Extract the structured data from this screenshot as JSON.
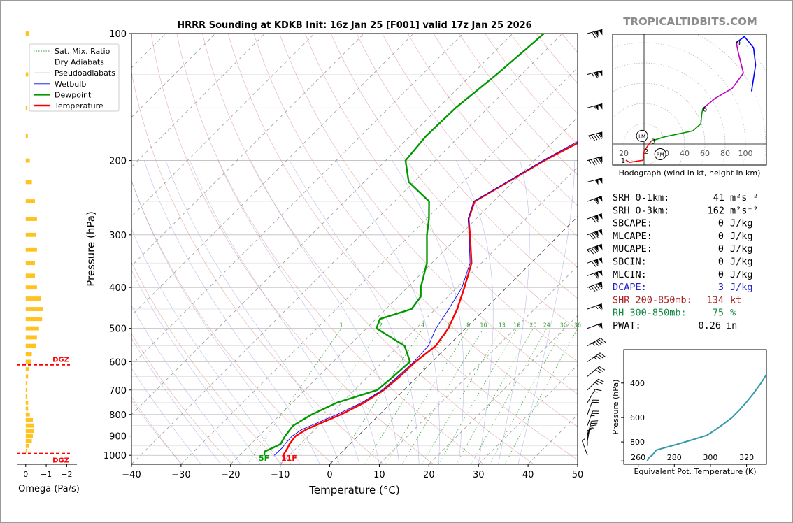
{
  "chart_data": [
    {
      "type": "line",
      "subtype": "skew-t",
      "title": "HRRR Sounding at KDKB Init: 16z Jan 25 [F001] valid 17z Jan 25 2026",
      "xlabel": "Temperature (°C)",
      "ylabel": "Pressure (hPa)",
      "xlim": [
        -40,
        50
      ],
      "ylim": [
        1050,
        100
      ],
      "y_scale": "log",
      "x_ticks": [
        -40,
        -30,
        -20,
        -10,
        0,
        10,
        20,
        30,
        40,
        50
      ],
      "x_tick_labels": [
        "−40",
        "−30",
        "−20",
        "−10",
        "0",
        "10",
        "20",
        "30",
        "40",
        "50"
      ],
      "y_ticks": [
        100,
        200,
        300,
        400,
        500,
        600,
        700,
        800,
        900,
        1000
      ],
      "grid": true,
      "legend_position": "top-left",
      "legend": [
        {
          "name": "Sat. Mix. Ratio",
          "color": "#2ca02c",
          "style": "dotted"
        },
        {
          "name": "Dry Adiabats",
          "color": "#d08a8a",
          "style": "solid"
        },
        {
          "name": "Pseudoadiabats",
          "color": "#aaaaaa",
          "style": "solid"
        },
        {
          "name": "Wetbulb",
          "color": "#0000ff",
          "style": "solid"
        },
        {
          "name": "Dewpoint",
          "color": "#009900",
          "style": "solid"
        },
        {
          "name": "Temperature",
          "color": "#ff0000",
          "style": "solid"
        }
      ],
      "mixing_ratio_labels": [
        "1",
        "2",
        "4",
        "6",
        "8",
        "10",
        "13",
        "16",
        "20",
        "24",
        "30",
        "36"
      ],
      "series": [
        {
          "name": "Temperature",
          "color": "#ff0000",
          "points": [
            [
              1000,
              -11.2
            ],
            [
              980,
              -11.5
            ],
            [
              960,
              -11.8
            ],
            [
              940,
              -12.2
            ],
            [
              900,
              -12.6
            ],
            [
              870,
              -11.8
            ],
            [
              850,
              -10.8
            ],
            [
              800,
              -7.8
            ],
            [
              750,
              -5.5
            ],
            [
              700,
              -4.1
            ],
            [
              650,
              -3.6
            ],
            [
              600,
              -3.4
            ],
            [
              550,
              -2.5
            ],
            [
              500,
              -3.5
            ],
            [
              450,
              -5.6
            ],
            [
              400,
              -8.5
            ],
            [
              350,
              -12.0
            ],
            [
              300,
              -18.0
            ],
            [
              275,
              -21.5
            ],
            [
              250,
              -23.8
            ],
            [
              225,
              -21.0
            ],
            [
              200,
              -18.0
            ],
            [
              175,
              -13.5
            ],
            [
              150,
              -9.0
            ],
            [
              125,
              -5.5
            ],
            [
              100,
              -4.2
            ]
          ]
        },
        {
          "name": "Dewpoint",
          "color": "#009900",
          "points": [
            [
              1000,
              -15.0
            ],
            [
              980,
              -15.7
            ],
            [
              960,
              -14.8
            ],
            [
              940,
              -14.0
            ],
            [
              900,
              -14.7
            ],
            [
              870,
              -15.0
            ],
            [
              850,
              -15.2
            ],
            [
              800,
              -13.7
            ],
            [
              750,
              -11.0
            ],
            [
              700,
              -5.4
            ],
            [
              650,
              -4.9
            ],
            [
              600,
              -4.5
            ],
            [
              550,
              -8.8
            ],
            [
              500,
              -18.0
            ],
            [
              475,
              -19.2
            ],
            [
              450,
              -14.8
            ],
            [
              420,
              -15.5
            ],
            [
              400,
              -17.3
            ],
            [
              350,
              -21.0
            ],
            [
              300,
              -26.7
            ],
            [
              275,
              -29.5
            ],
            [
              250,
              -33.0
            ],
            [
              225,
              -41.0
            ],
            [
              200,
              -46.0
            ],
            [
              175,
              -46.8
            ],
            [
              150,
              -46.5
            ],
            [
              125,
              -45.0
            ],
            [
              100,
              -43.7
            ]
          ]
        },
        {
          "name": "Wetbulb",
          "color": "#0000ff",
          "points": [
            [
              1000,
              -13.0
            ],
            [
              960,
              -12.9
            ],
            [
              940,
              -13.1
            ],
            [
              900,
              -13.3
            ],
            [
              870,
              -12.7
            ],
            [
              850,
              -11.6
            ],
            [
              800,
              -8.6
            ],
            [
              750,
              -6.0
            ],
            [
              700,
              -4.4
            ],
            [
              650,
              -4.0
            ],
            [
              600,
              -3.7
            ],
            [
              550,
              -4.0
            ],
            [
              500,
              -6.0
            ],
            [
              450,
              -7.3
            ],
            [
              400,
              -9.0
            ],
            [
              350,
              -12.3
            ],
            [
              300,
              -18.2
            ],
            [
              275,
              -21.6
            ],
            [
              250,
              -24.0
            ],
            [
              225,
              -21.2
            ],
            [
              200,
              -18.3
            ],
            [
              175,
              -14.2
            ],
            [
              150,
              -9.5
            ],
            [
              125,
              -6.2
            ],
            [
              100,
              -4.9
            ]
          ]
        }
      ],
      "surface_labels": [
        {
          "text": "5F",
          "color": "#009900"
        },
        {
          "text": "11F",
          "color": "#ff0000"
        }
      ],
      "wind_barbs": [
        {
          "p": 100,
          "dir": 255,
          "kt": 120
        },
        {
          "p": 125,
          "dir": 255,
          "kt": 115
        },
        {
          "p": 150,
          "dir": 255,
          "kt": 105
        },
        {
          "p": 175,
          "dir": 255,
          "kt": 95
        },
        {
          "p": 200,
          "dir": 255,
          "kt": 95
        },
        {
          "p": 225,
          "dir": 255,
          "kt": 100
        },
        {
          "p": 250,
          "dir": 250,
          "kt": 110
        },
        {
          "p": 275,
          "dir": 250,
          "kt": 120
        },
        {
          "p": 300,
          "dir": 250,
          "kt": 130
        },
        {
          "p": 325,
          "dir": 250,
          "kt": 135
        },
        {
          "p": 350,
          "dir": 250,
          "kt": 120
        },
        {
          "p": 375,
          "dir": 250,
          "kt": 110
        },
        {
          "p": 400,
          "dir": 250,
          "kt": 95
        },
        {
          "p": 450,
          "dir": 250,
          "kt": 65
        },
        {
          "p": 500,
          "dir": 250,
          "kt": 55
        },
        {
          "p": 550,
          "dir": 240,
          "kt": 45
        },
        {
          "p": 600,
          "dir": 235,
          "kt": 35
        },
        {
          "p": 650,
          "dir": 230,
          "kt": 30
        },
        {
          "p": 700,
          "dir": 225,
          "kt": 25
        },
        {
          "p": 750,
          "dir": 210,
          "kt": 15
        },
        {
          "p": 800,
          "dir": 200,
          "kt": 20
        },
        {
          "p": 850,
          "dir": 200,
          "kt": 25
        },
        {
          "p": 900,
          "dir": 195,
          "kt": 20
        },
        {
          "p": 925,
          "dir": 190,
          "kt": 15
        },
        {
          "p": 950,
          "dir": 180,
          "kt": 10
        },
        {
          "p": 1000,
          "dir": 160,
          "kt": 5
        }
      ]
    },
    {
      "type": "bar",
      "subtype": "omega-profile",
      "xlabel": "Omega (Pa/s)",
      "x_ticks": [
        "0",
        "−1",
        "−2"
      ],
      "xlim": [
        0.3,
        -2.5
      ],
      "y_scale": "log",
      "ylim": [
        1050,
        100
      ],
      "dgz_label": "DGZ",
      "dgz_levels": [
        610,
        990
      ],
      "bars": [
        {
          "p": 100,
          "v": -0.15
        },
        {
          "p": 125,
          "v": -0.12
        },
        {
          "p": 150,
          "v": -0.08
        },
        {
          "p": 175,
          "v": -0.1
        },
        {
          "p": 200,
          "v": -0.2
        },
        {
          "p": 225,
          "v": -0.3
        },
        {
          "p": 250,
          "v": -0.45
        },
        {
          "p": 275,
          "v": -0.55
        },
        {
          "p": 300,
          "v": -0.5
        },
        {
          "p": 325,
          "v": -0.55
        },
        {
          "p": 350,
          "v": -0.45
        },
        {
          "p": 375,
          "v": -0.45
        },
        {
          "p": 400,
          "v": -0.55
        },
        {
          "p": 425,
          "v": -0.75
        },
        {
          "p": 450,
          "v": -0.85
        },
        {
          "p": 475,
          "v": -0.8
        },
        {
          "p": 500,
          "v": -0.65
        },
        {
          "p": 525,
          "v": -0.55
        },
        {
          "p": 550,
          "v": -0.5
        },
        {
          "p": 575,
          "v": -0.3
        },
        {
          "p": 600,
          "v": -0.25
        },
        {
          "p": 625,
          "v": -0.15
        },
        {
          "p": 650,
          "v": -0.12
        },
        {
          "p": 675,
          "v": -0.08
        },
        {
          "p": 700,
          "v": -0.08
        },
        {
          "p": 725,
          "v": -0.08
        },
        {
          "p": 750,
          "v": -0.12
        },
        {
          "p": 775,
          "v": -0.12
        },
        {
          "p": 800,
          "v": -0.2
        },
        {
          "p": 825,
          "v": -0.35
        },
        {
          "p": 850,
          "v": -0.4
        },
        {
          "p": 875,
          "v": -0.4
        },
        {
          "p": 900,
          "v": -0.35
        },
        {
          "p": 925,
          "v": -0.3
        },
        {
          "p": 950,
          "v": -0.15
        },
        {
          "p": 975,
          "v": -0.08
        }
      ]
    },
    {
      "type": "line",
      "subtype": "hodograph",
      "xlabel": "Hodograph (wind in kt, height in km)",
      "x_ticks": [
        "20",
        "40",
        "60",
        "80",
        "100"
      ],
      "ring_spacing_kt": 20,
      "points": [
        {
          "u": -18,
          "v": -16,
          "km": 1
        },
        {
          "u": -14,
          "v": -18,
          "km": null
        },
        {
          "u": -1,
          "v": -16,
          "km": null
        },
        {
          "u": 0,
          "v": -7,
          "km": 2
        },
        {
          "u": 7,
          "v": 3,
          "km": 3
        },
        {
          "u": 20,
          "v": 7,
          "km": null
        },
        {
          "u": 48,
          "v": 13,
          "km": null
        },
        {
          "u": 56,
          "v": 20,
          "km": null
        },
        {
          "u": 57,
          "v": 30,
          "km": null
        },
        {
          "u": 58,
          "v": 35,
          "km": 6
        },
        {
          "u": 70,
          "v": 45,
          "km": null
        },
        {
          "u": 87,
          "v": 55,
          "km": null
        },
        {
          "u": 98,
          "v": 70,
          "km": null
        },
        {
          "u": 93,
          "v": 90,
          "km": null
        },
        {
          "u": 91,
          "v": 100,
          "km": 9
        },
        {
          "u": 99,
          "v": 106,
          "km": null
        },
        {
          "u": 108,
          "v": 95,
          "km": null
        },
        {
          "u": 110,
          "v": 78,
          "km": null
        },
        {
          "u": 106,
          "v": 52,
          "km": null
        }
      ],
      "segments": [
        {
          "from_km": 0,
          "to_km": 3,
          "color": "#ff0000"
        },
        {
          "from_km": 3,
          "to_km": 6,
          "color": "#009900"
        },
        {
          "from_km": 6,
          "to_km": 9,
          "color": "#c000c0"
        },
        {
          "from_km": 9,
          "to_km": 12,
          "color": "#0000ff"
        }
      ],
      "storm_motion": [
        {
          "label": "LM",
          "u": -2,
          "v": 8
        },
        {
          "label": "RM",
          "u": 16,
          "v": -10
        }
      ]
    },
    {
      "type": "line",
      "subtype": "theta-e-profile",
      "xlabel": "Equivalent Pot. Temperature (K)",
      "ylabel": "Pressure (hPa)",
      "xlim": [
        252,
        331
      ],
      "ylim": [
        1040,
        270
      ],
      "y_scale": "log",
      "x_ticks": [
        260,
        280,
        300,
        320
      ],
      "y_ticks": [
        400,
        600,
        800
      ],
      "color": "#3399aa",
      "points": [
        [
          1000,
          265
        ],
        [
          960,
          266
        ],
        [
          930,
          268
        ],
        [
          880,
          270
        ],
        [
          820,
          282
        ],
        [
          780,
          290
        ],
        [
          740,
          298
        ],
        [
          700,
          302
        ],
        [
          650,
          307
        ],
        [
          600,
          312
        ],
        [
          550,
          316
        ],
        [
          500,
          320
        ],
        [
          450,
          324
        ],
        [
          400,
          328
        ],
        [
          350,
          332
        ],
        [
          300,
          336
        ]
      ]
    }
  ],
  "brand": "TROPICALTIDBITS.COM",
  "indices": [
    {
      "label": "SRH 0-1km:",
      "value": "41",
      "unit": "m²s⁻²",
      "color": "#000000"
    },
    {
      "label": "SRH 0-3km:",
      "value": "162",
      "unit": "m²s⁻²",
      "color": "#000000"
    },
    {
      "label": "SBCAPE:",
      "value": "0",
      "unit": "J/kg",
      "color": "#000000"
    },
    {
      "label": "MLCAPE:",
      "value": "0",
      "unit": "J/kg",
      "color": "#000000"
    },
    {
      "label": "MUCAPE:",
      "value": "0",
      "unit": "J/kg",
      "color": "#000000"
    },
    {
      "label": "SBCIN:",
      "value": "0",
      "unit": "J/kg",
      "color": "#000000"
    },
    {
      "label": "MLCIN:",
      "value": "0",
      "unit": "J/kg",
      "color": "#000000"
    },
    {
      "label": "DCAPE:",
      "value": "3",
      "unit": "J/kg",
      "color": "#2222cc"
    },
    {
      "label": "SHR 200-850mb:",
      "value": "134",
      "unit": "kt",
      "color": "#aa2222"
    },
    {
      "label": "RH 300-850mb:",
      "value": "75",
      "unit": "%",
      "color": "#118844"
    },
    {
      "label": "PWAT:",
      "value": "0.26",
      "unit": "in",
      "color": "#000000"
    }
  ]
}
